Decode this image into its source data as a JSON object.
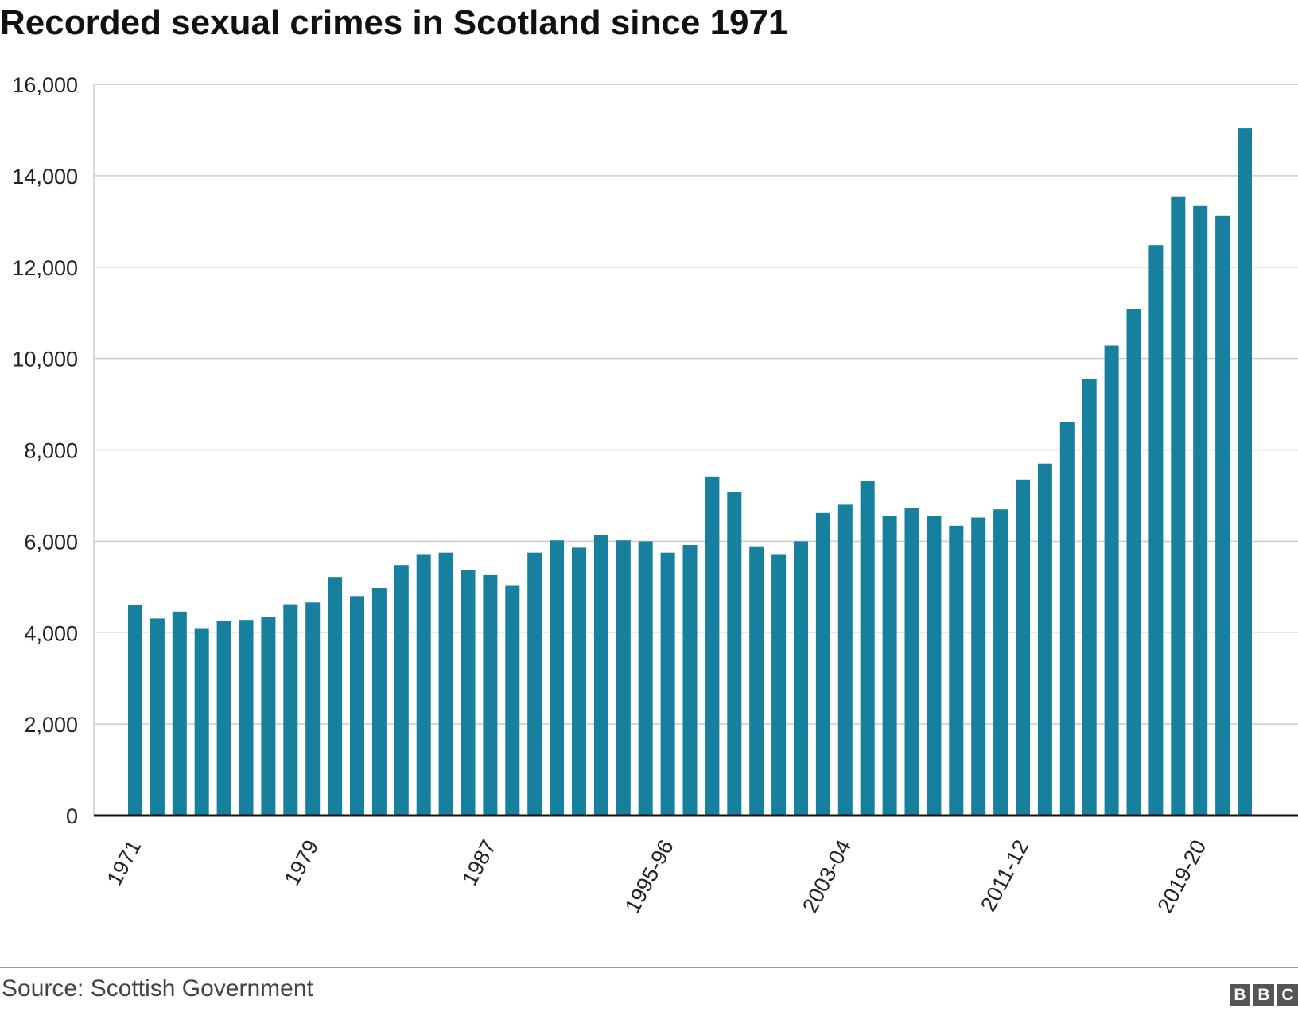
{
  "chart_data": {
    "type": "bar",
    "title": "Recorded sexual crimes in Scotland since 1971",
    "xlabel": "",
    "ylabel": "",
    "ylim": [
      0,
      16000
    ],
    "yticks": [
      "0",
      "2,000",
      "4,000",
      "6,000",
      "8,000",
      "10,000",
      "12,000",
      "14,000",
      "16,000"
    ],
    "xtick_labels": [
      "1971",
      "1979",
      "1987",
      "1995-96",
      "2003-04",
      "2011-12",
      "2019-20"
    ],
    "grid": true,
    "bar_color": "#17809f",
    "values": [
      4600,
      4310,
      4460,
      4100,
      4250,
      4280,
      4350,
      4620,
      4660,
      5220,
      4800,
      4980,
      5480,
      5720,
      5750,
      5370,
      5260,
      5040,
      5750,
      6020,
      5860,
      6130,
      6020,
      6000,
      5750,
      5920,
      7420,
      7070,
      5890,
      5720,
      6000,
      6620,
      6800,
      7320,
      6550,
      6720,
      6550,
      6340,
      6520,
      6700,
      7350,
      7700,
      8600,
      9550,
      10280,
      11080,
      12480,
      13550,
      13340,
      13130,
      15040
    ],
    "tick_indices": [
      0,
      8,
      16,
      24,
      32,
      40,
      48
    ]
  },
  "footer": {
    "source": "Source: Scottish Government",
    "logo_letters": [
      "B",
      "B",
      "C"
    ]
  }
}
